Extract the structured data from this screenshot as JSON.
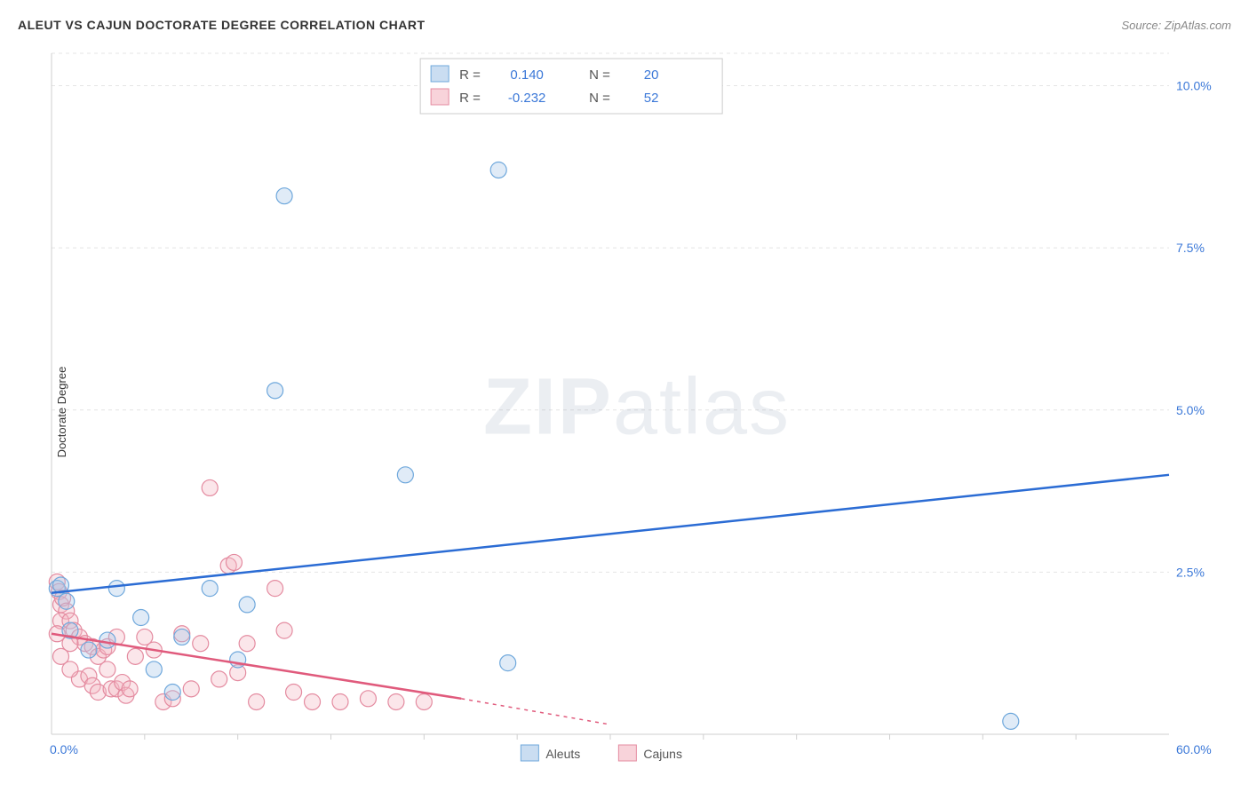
{
  "title": "ALEUT VS CAJUN DOCTORATE DEGREE CORRELATION CHART",
  "source": "Source: ZipAtlas.com",
  "ylabel": "Doctorate Degree",
  "watermark_bold": "ZIP",
  "watermark_rest": "atlas",
  "chart": {
    "type": "scatter",
    "background_color": "#ffffff",
    "grid_color": "#e4e4e4",
    "grid_dash": "4,4",
    "axis_color": "#cfcfcf",
    "tick_label_color": "#3b78d8",
    "tick_label_fontsize": 14,
    "xlim": [
      0,
      60
    ],
    "ylim": [
      0,
      10.5
    ],
    "x_start_label": "0.0%",
    "x_end_label": "60.0%",
    "x_minor_ticks": [
      5,
      10,
      15,
      20,
      25,
      30,
      35,
      40,
      45,
      50,
      55
    ],
    "y_gridlines": [
      2.5,
      5.0,
      7.5,
      10.0
    ],
    "y_gridline_labels": [
      "2.5%",
      "5.0%",
      "7.5%",
      "10.0%"
    ],
    "marker_radius": 9,
    "marker_stroke_width": 1.2,
    "marker_fill_opacity": 0.35,
    "trendline_width": 2.5,
    "series": [
      {
        "name": "Aleuts",
        "color_stroke": "#6fa8dc",
        "color_fill": "#a7c7e7",
        "trend_color": "#2b6cd4",
        "r_value": "0.140",
        "n_value": "20",
        "trend_start": [
          0,
          2.18
        ],
        "trend_end": [
          60,
          4.0
        ],
        "points": [
          [
            0.3,
            2.25
          ],
          [
            0.5,
            2.3
          ],
          [
            3.5,
            2.25
          ],
          [
            7.0,
            1.5
          ],
          [
            6.5,
            0.65
          ],
          [
            8.5,
            2.25
          ],
          [
            10.5,
            2.0
          ],
          [
            12.5,
            8.3
          ],
          [
            12.0,
            5.3
          ],
          [
            10.0,
            1.15
          ],
          [
            19.0,
            4.0
          ],
          [
            24.0,
            8.7
          ],
          [
            24.5,
            1.1
          ],
          [
            51.5,
            0.2
          ],
          [
            3.0,
            1.45
          ],
          [
            4.8,
            1.8
          ],
          [
            1.0,
            1.6
          ],
          [
            2.0,
            1.3
          ],
          [
            5.5,
            1.0
          ],
          [
            0.8,
            2.05
          ]
        ]
      },
      {
        "name": "Cajuns",
        "color_stroke": "#e48ba0",
        "color_fill": "#f4b6c2",
        "trend_color": "#e05a7c",
        "r_value": "-0.232",
        "n_value": "52",
        "trend_start": [
          0,
          1.55
        ],
        "trend_end_solid": [
          22,
          0.55
        ],
        "trend_end_dashed": [
          30,
          0.15
        ],
        "points": [
          [
            0.3,
            2.35
          ],
          [
            0.4,
            2.2
          ],
          [
            0.5,
            2.0
          ],
          [
            0.6,
            2.1
          ],
          [
            0.8,
            1.9
          ],
          [
            0.5,
            1.75
          ],
          [
            1.0,
            1.75
          ],
          [
            1.2,
            1.6
          ],
          [
            0.3,
            1.55
          ],
          [
            1.5,
            1.5
          ],
          [
            1.8,
            1.4
          ],
          [
            1.0,
            1.4
          ],
          [
            2.2,
            1.35
          ],
          [
            2.5,
            1.2
          ],
          [
            2.8,
            1.3
          ],
          [
            3.0,
            1.35
          ],
          [
            3.0,
            1.0
          ],
          [
            1.5,
            0.85
          ],
          [
            2.0,
            0.9
          ],
          [
            2.2,
            0.75
          ],
          [
            2.5,
            0.65
          ],
          [
            3.2,
            0.7
          ],
          [
            3.5,
            0.7
          ],
          [
            3.8,
            0.8
          ],
          [
            4.0,
            0.6
          ],
          [
            4.2,
            0.7
          ],
          [
            4.5,
            1.2
          ],
          [
            5.0,
            1.5
          ],
          [
            5.5,
            1.3
          ],
          [
            6.0,
            0.5
          ],
          [
            6.5,
            0.55
          ],
          [
            7.0,
            1.55
          ],
          [
            7.5,
            0.7
          ],
          [
            8.0,
            1.4
          ],
          [
            8.5,
            3.8
          ],
          [
            9.0,
            0.85
          ],
          [
            9.5,
            2.6
          ],
          [
            9.8,
            2.65
          ],
          [
            10.0,
            0.95
          ],
          [
            10.5,
            1.4
          ],
          [
            11.0,
            0.5
          ],
          [
            12.0,
            2.25
          ],
          [
            12.5,
            1.6
          ],
          [
            13.0,
            0.65
          ],
          [
            14.0,
            0.5
          ],
          [
            15.5,
            0.5
          ],
          [
            17.0,
            0.55
          ],
          [
            18.5,
            0.5
          ],
          [
            20.0,
            0.5
          ],
          [
            1.0,
            1.0
          ],
          [
            0.5,
            1.2
          ],
          [
            3.5,
            1.5
          ]
        ]
      }
    ],
    "legend_bottom": {
      "items": [
        {
          "label": "Aleuts",
          "swatch_fill": "#a7c7e7",
          "swatch_stroke": "#6fa8dc"
        },
        {
          "label": "Cajuns",
          "swatch_fill": "#f4b6c2",
          "swatch_stroke": "#e48ba0"
        }
      ]
    },
    "legend_box": {
      "border_color": "#cccccc",
      "bg_color": "#ffffff",
      "text_color_label": "#555555",
      "text_color_value": "#3b78d8",
      "fontsize": 15,
      "r_label": "R =",
      "n_label": "N ="
    }
  }
}
